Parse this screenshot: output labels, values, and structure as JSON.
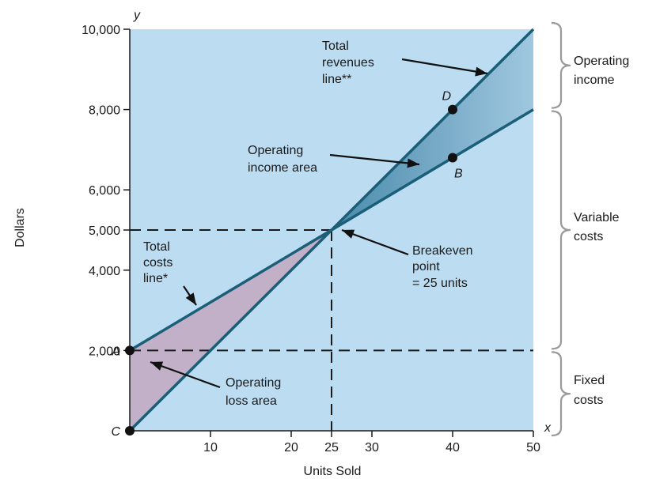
{
  "chart_data": {
    "type": "line",
    "xlabel": "Units Sold",
    "ylabel": "Dollars",
    "x_axis_letter": "x",
    "y_axis_letter": "y",
    "xlim": [
      0,
      50
    ],
    "ylim": [
      0,
      10000
    ],
    "x_ticks": [
      10,
      20,
      25,
      30,
      40,
      50
    ],
    "x_tick_labels": [
      "10",
      "20",
      "25",
      "30",
      "40",
      "50"
    ],
    "y_ticks": [
      2000,
      4000,
      5000,
      6000,
      8000,
      10000
    ],
    "y_tick_labels": [
      "2,000",
      "4,000",
      "5,000",
      "6,000",
      "8,000",
      "10,000"
    ],
    "series": [
      {
        "name": "Total revenues line**",
        "x": [
          0,
          50
        ],
        "y": [
          0,
          10000
        ]
      },
      {
        "name": "Total costs line*",
        "x": [
          0,
          50
        ],
        "y": [
          2000,
          8000
        ]
      }
    ],
    "fixed_cost_level": 2000,
    "breakeven": {
      "x": 25,
      "y": 5000
    },
    "points": [
      {
        "label": "A",
        "x": 0,
        "y": 2000
      },
      {
        "label": "B",
        "x": 40,
        "y": 6800
      },
      {
        "label": "C",
        "x": 0,
        "y": 0
      },
      {
        "label": "D",
        "x": 40,
        "y": 8000
      }
    ],
    "annotations": {
      "total_revenues": [
        "Total",
        "revenues",
        "line**"
      ],
      "operating_income_area": [
        "Operating",
        "income area"
      ],
      "total_costs": [
        "Total",
        "costs",
        "line*"
      ],
      "breakeven_point": [
        "Breakeven",
        "point",
        "= 25 units"
      ],
      "operating_loss_area": [
        "Operating",
        "loss area"
      ]
    },
    "brace_labels": {
      "operating_income": [
        "Operating",
        "income"
      ],
      "variable_costs": [
        "Variable",
        "costs"
      ],
      "fixed_costs": [
        "Fixed",
        "costs"
      ]
    },
    "colors": {
      "plot_background": "#bcdcf2",
      "line": "#1b5e78",
      "income_area": "#4a8aab",
      "loss_area": "#c2b0c8",
      "point": "#111111",
      "brace": "#9a9a9a"
    }
  }
}
